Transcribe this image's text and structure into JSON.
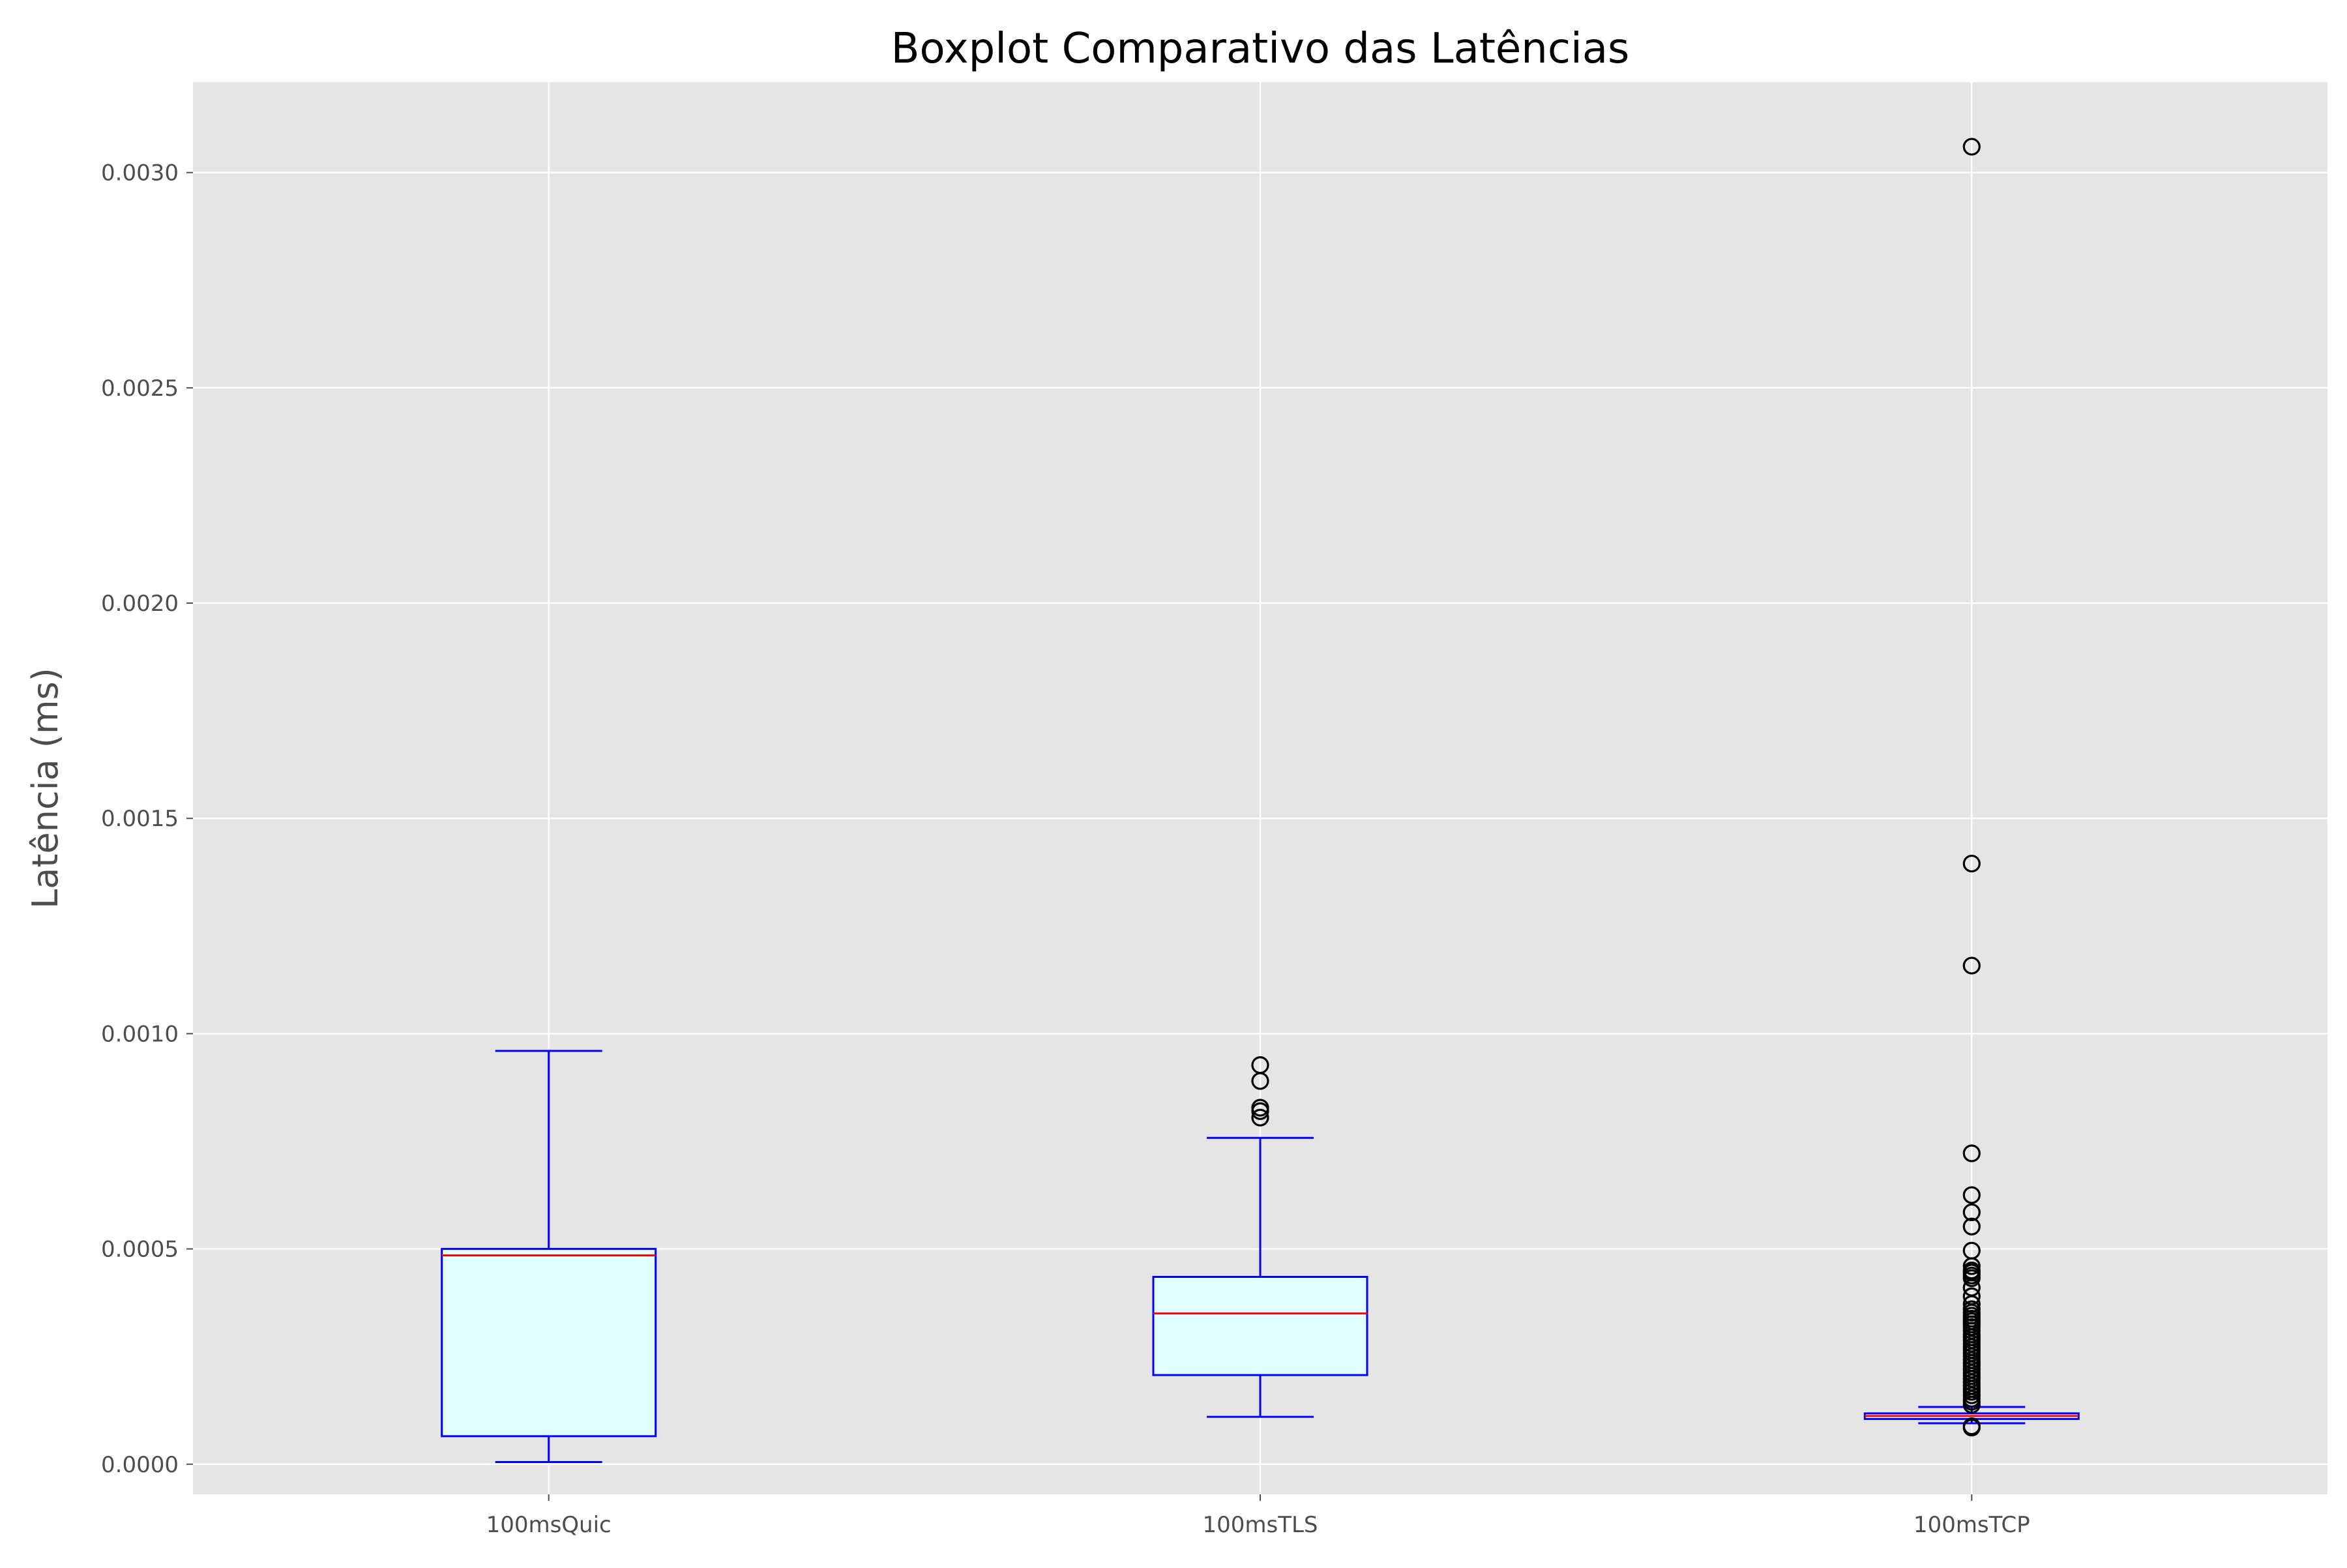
{
  "chart_data": {
    "type": "boxplot",
    "title": "Boxplot Comparativo das Latências",
    "xlabel": "",
    "ylabel": "Latência (ms)",
    "ylim": [
      -7e-05,
      0.00321
    ],
    "yticks": [
      0.0,
      0.0005,
      0.001,
      0.0015,
      0.002,
      0.0025,
      0.003
    ],
    "ytick_labels": [
      "0.0000",
      "0.0005",
      "0.0010",
      "0.0015",
      "0.0020",
      "0.0025",
      "0.0030"
    ],
    "grid": true,
    "categories": [
      "100msQuic",
      "100msTLS",
      "100msTCP"
    ],
    "boxes": [
      {
        "label": "100msQuic",
        "whisker_low": 5e-06,
        "q1": 6.5e-05,
        "median": 0.000485,
        "q3": 0.0005,
        "whisker_high": 0.00096,
        "outliers": []
      },
      {
        "label": "100msTLS",
        "whisker_low": 0.00011,
        "q1": 0.000207,
        "median": 0.00035,
        "q3": 0.000435,
        "whisker_high": 0.000758,
        "outliers": [
          0.000927,
          0.00089,
          0.000828,
          0.00082,
          0.000805
        ]
      },
      {
        "label": "100msTCP",
        "whisker_low": 9.5e-05,
        "q1": 0.000105,
        "median": 0.000112,
        "q3": 0.000118,
        "whisker_high": 0.000133,
        "outliers": [
          0.00306,
          0.001395,
          0.001158,
          0.000722,
          0.000625,
          0.000585,
          0.000552,
          0.000496,
          0.00046,
          0.00045,
          0.000445,
          0.000438,
          0.000432,
          0.00041,
          0.00039,
          0.000372,
          0.00036,
          0.000352,
          0.000345,
          0.000338,
          0.000332,
          0.000325,
          0.000318,
          0.00031,
          0.000302,
          0.000295,
          0.000288,
          0.00028,
          0.000272,
          0.000265,
          0.000258,
          0.00025,
          0.000242,
          0.000235,
          0.000228,
          0.00022,
          0.000212,
          0.000205,
          0.000198,
          0.00019,
          0.000182,
          0.000175,
          0.000168,
          0.00016,
          0.000152,
          0.000145,
          0.000138,
          8.8e-05,
          8.5e-05
        ]
      }
    ],
    "colors": {
      "background": "#e5e5e5",
      "grid": "#ffffff",
      "box_edge": "#0000ff",
      "box_fill": "#e0ffff",
      "median": "#ff0000",
      "outlier_edge": "#000000",
      "tick_text": "#4d4d4d",
      "title_text": "#000000"
    }
  }
}
